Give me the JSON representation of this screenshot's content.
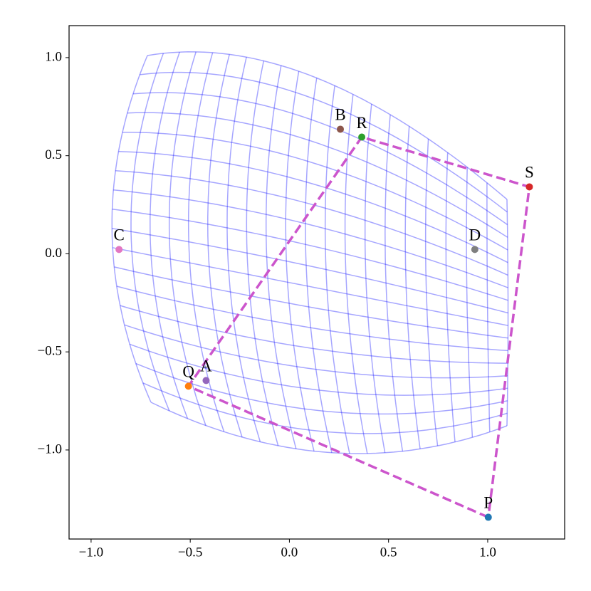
{
  "chart_data": {
    "type": "scatter",
    "points": {
      "labels": [
        "P",
        "Q",
        "R",
        "S",
        "A",
        "B",
        "C",
        "D"
      ],
      "x": [
        1.003,
        -0.509,
        0.365,
        1.21,
        -0.42,
        0.257,
        -0.859,
        0.935
      ],
      "y": [
        -1.343,
        -0.675,
        0.595,
        0.341,
        -0.646,
        0.635,
        0.022,
        0.022
      ],
      "colors": [
        "#1f77b4",
        "#ff7f0e",
        "#2ca02c",
        "#d62728",
        "#9467bd",
        "#8c564b",
        "#e377c2",
        "#7f7f7f"
      ]
    },
    "line_color": "#cc55cc",
    "mesh_color": "#0000ff",
    "xlim": [
      -1.111,
      1.388
    ],
    "ylim": [
      -1.454,
      1.163
    ],
    "xticks": [
      {
        "value": -1.0,
        "label": "−1.0"
      },
      {
        "value": -0.5,
        "label": "−0.5"
      },
      {
        "value": 0.0,
        "label": "0.0"
      },
      {
        "value": 0.5,
        "label": "0.5"
      },
      {
        "value": 1.0,
        "label": "1.0"
      }
    ],
    "yticks": [
      {
        "value": -1.0,
        "label": "−1.0"
      },
      {
        "value": -0.5,
        "label": "−0.5"
      },
      {
        "value": 0.0,
        "label": "0.0"
      },
      {
        "value": 0.5,
        "label": "0.5"
      },
      {
        "value": 1.0,
        "label": "1.0"
      }
    ]
  }
}
